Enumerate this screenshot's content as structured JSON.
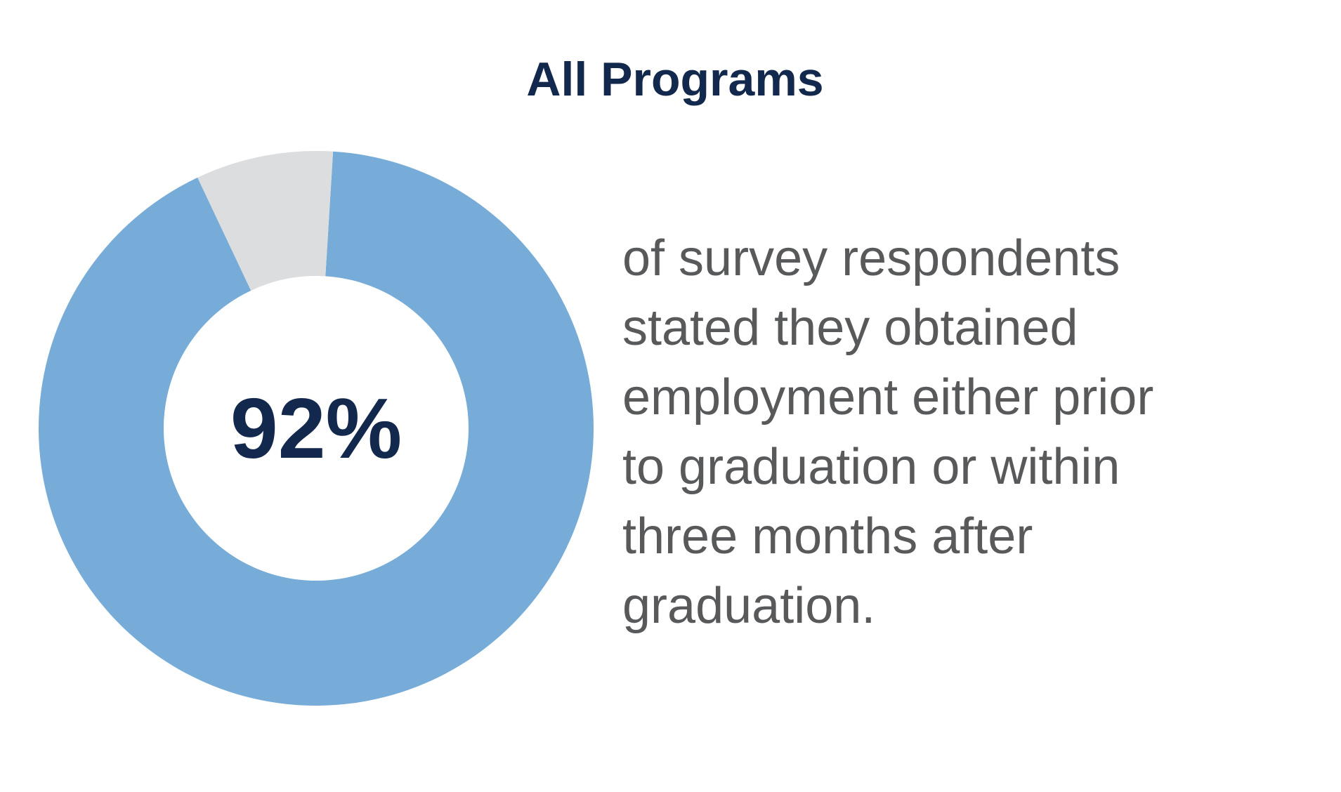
{
  "chart_data": {
    "type": "donut",
    "title": "All Programs",
    "values": [
      92,
      8
    ],
    "value_labels": [
      "92%",
      null
    ],
    "colors": [
      "#77acd8",
      "#dcdddf"
    ],
    "caption_lines": [
      "of survey respondents",
      "stated they obtained",
      "employment either prior",
      "to graduation or within",
      "three months after",
      "graduation."
    ]
  }
}
